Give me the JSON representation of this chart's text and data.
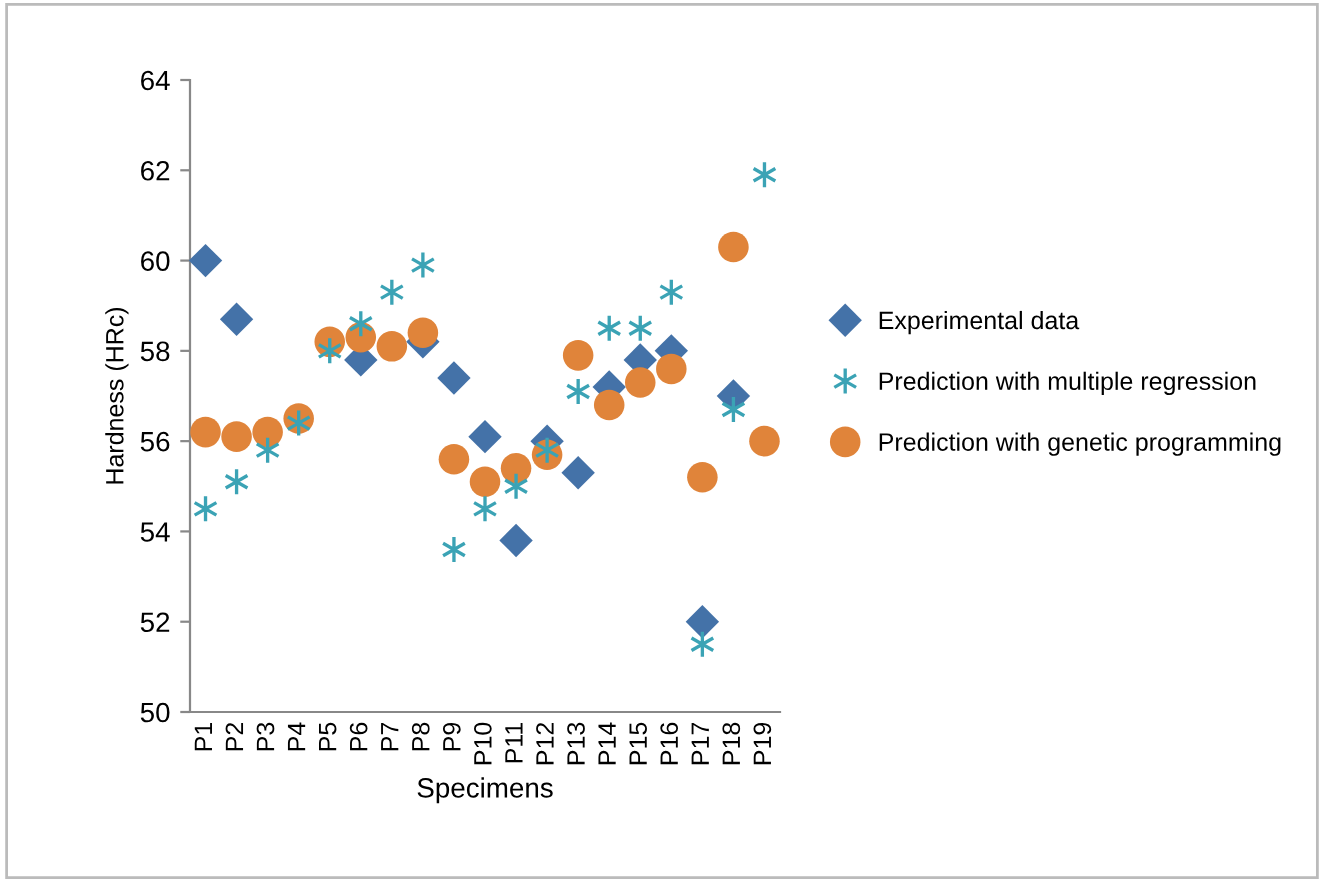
{
  "chart_data": {
    "type": "scatter",
    "xlabel": "Specimens",
    "ylabel": "Hardness (HRc)",
    "categories": [
      "P1",
      "P2",
      "P3",
      "P4",
      "P5",
      "P6",
      "P7",
      "P8",
      "P9",
      "P10",
      "P11",
      "P12",
      "P13",
      "P14",
      "P15",
      "P16",
      "P17",
      "P18",
      "P19"
    ],
    "ylim": [
      50,
      64
    ],
    "yticks": [
      50,
      52,
      54,
      56,
      58,
      60,
      62,
      64
    ],
    "grid": false,
    "legend": "right",
    "series": [
      {
        "name": "Experimental data",
        "color": "#4472a8",
        "marker": "diamond",
        "values": [
          60.0,
          58.7,
          null,
          null,
          null,
          57.8,
          null,
          58.2,
          57.4,
          56.1,
          53.8,
          56.0,
          55.3,
          57.2,
          57.8,
          58.0,
          52.0,
          57.0,
          null
        ]
      },
      {
        "name": "Prediction with multiple regression",
        "color": "#3ba3b5",
        "marker": "cross",
        "values": [
          54.5,
          55.1,
          55.8,
          56.4,
          58.0,
          58.6,
          59.3,
          59.9,
          53.6,
          54.5,
          55.0,
          55.8,
          57.1,
          58.5,
          58.5,
          59.3,
          51.5,
          56.7,
          61.9
        ]
      },
      {
        "name": "Prediction with genetic programming",
        "color": "#e0843a",
        "marker": "circle",
        "values": [
          56.2,
          56.1,
          56.2,
          56.5,
          58.2,
          58.3,
          58.1,
          58.4,
          55.6,
          55.1,
          55.4,
          55.7,
          57.9,
          56.8,
          57.3,
          57.6,
          55.2,
          60.3,
          56.0
        ]
      }
    ]
  }
}
